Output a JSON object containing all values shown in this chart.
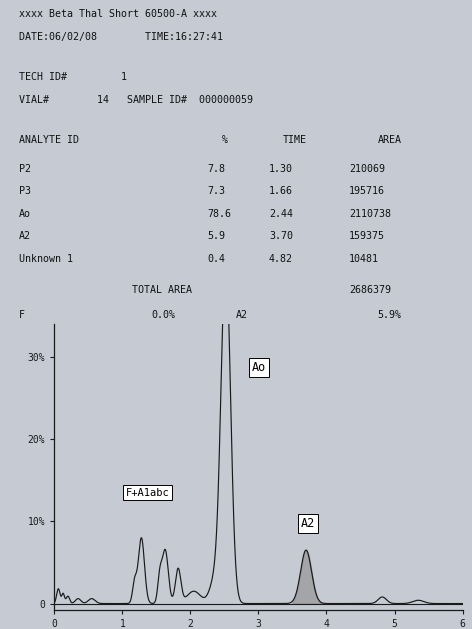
{
  "title_line1": "xxxx Beta Thal Short 60500-A xxxx",
  "title_line2": "DATE:06/02/08        TIME:16:27:41",
  "tech_line": "TECH ID#         1",
  "vial_line": "VIAL#        14   SAMPLE ID#  000000059",
  "header_cols": [
    "ANALYTE ID",
    "%",
    "TIME",
    "AREA"
  ],
  "rows": [
    [
      "P2",
      "7.8",
      "1.30",
      "210069"
    ],
    [
      "P3",
      "7.3",
      "1.66",
      "195716"
    ],
    [
      "Ao",
      "78.6",
      "2.44",
      "2110738"
    ],
    [
      "A2",
      "5.9",
      "3.70",
      "159375"
    ],
    [
      "Unknown 1",
      "0.4",
      "4.82",
      "10481"
    ]
  ],
  "total_area_label": "TOTAL AREA",
  "total_area_value": "2686379",
  "f_label": "F",
  "f_pct": "0.0%",
  "a2_label": "A2",
  "a2_pct": "5.9%",
  "bg_color": "#c5cad3",
  "text_color": "#111111",
  "line_color": "#1a1a1a",
  "fill_color": "#888888",
  "xlabel_ticks": [
    0,
    1,
    2,
    3,
    4,
    5,
    6
  ],
  "ylabel_ticks": [
    "0",
    "10%",
    "20%",
    "30%"
  ],
  "ytick_vals": [
    0.0,
    0.1,
    0.2,
    0.3
  ]
}
